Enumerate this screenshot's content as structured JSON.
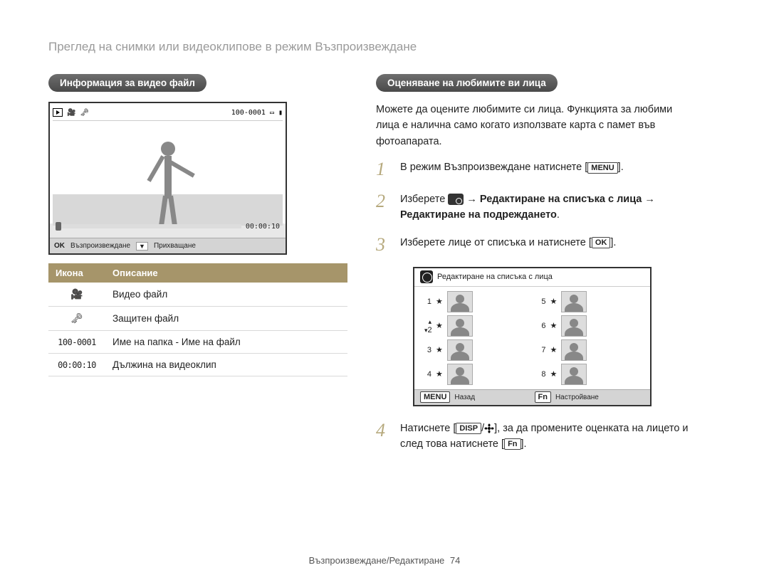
{
  "page_title": "Преглед на снимки или видеоклипове в режим Възпроизвеждане",
  "left": {
    "section_header": "Информация за видео файл",
    "screen": {
      "folder_file": "100-0001",
      "timecode": "00:00:10",
      "ok_label": "OK",
      "play_label": "Възпроизвеждане",
      "capture_label": "Прихващане"
    },
    "table": {
      "col_icon": "Икона",
      "col_desc": "Описание",
      "rows": [
        {
          "icon": "camera",
          "desc": "Видео файл"
        },
        {
          "icon": "key",
          "desc": "Защитен файл"
        },
        {
          "icon": "mono",
          "label": "100-0001",
          "desc": "Име на папка - Име на файл"
        },
        {
          "icon": "mono",
          "label": "00:00:10",
          "desc": "Дължина на видеоклип"
        }
      ]
    }
  },
  "right": {
    "section_header": "Оценяване на любимите ви лица",
    "intro": "Можете да оцените любимите си лица. Функцията за любими лица е налична само когато използвате карта с памет във фотоапарата.",
    "step1": {
      "text_before": "В режим Възпроизвеждане натиснете ",
      "kbd": "MENU",
      "text_after": "."
    },
    "step2": {
      "select_label": "Изберете ",
      "arrow": " → ",
      "bold_part1": "Редактиране на списъка с лица",
      "bold_part2": "Редактиране на подреждането",
      "period": "."
    },
    "step3": {
      "text_before": "Изберете лице от списъка и натиснете ",
      "kbd": "OK",
      "text_after": "."
    },
    "screen2": {
      "title": "Редактиране на списъка с лица",
      "back_kbd": "MENU",
      "back_label": "Назад",
      "fn_kbd": "Fn",
      "fn_label": "Настройване",
      "items": [
        "1",
        "2",
        "3",
        "4",
        "5",
        "6",
        "7",
        "8"
      ]
    },
    "step4": {
      "text_before": "Натиснете ",
      "kbd_disp": "DISP",
      "slash": "/",
      "text_mid": ", за да промените оценката на лицето и след това натиснете ",
      "kbd_fn": "Fn",
      "text_after": "."
    }
  },
  "footer": {
    "text": "Възпроизвеждане/Редактиране",
    "page": "74"
  },
  "colors": {
    "accent": "#a6956a",
    "stepnum": "#b6a97d",
    "title_gray": "#9a9a9a"
  }
}
